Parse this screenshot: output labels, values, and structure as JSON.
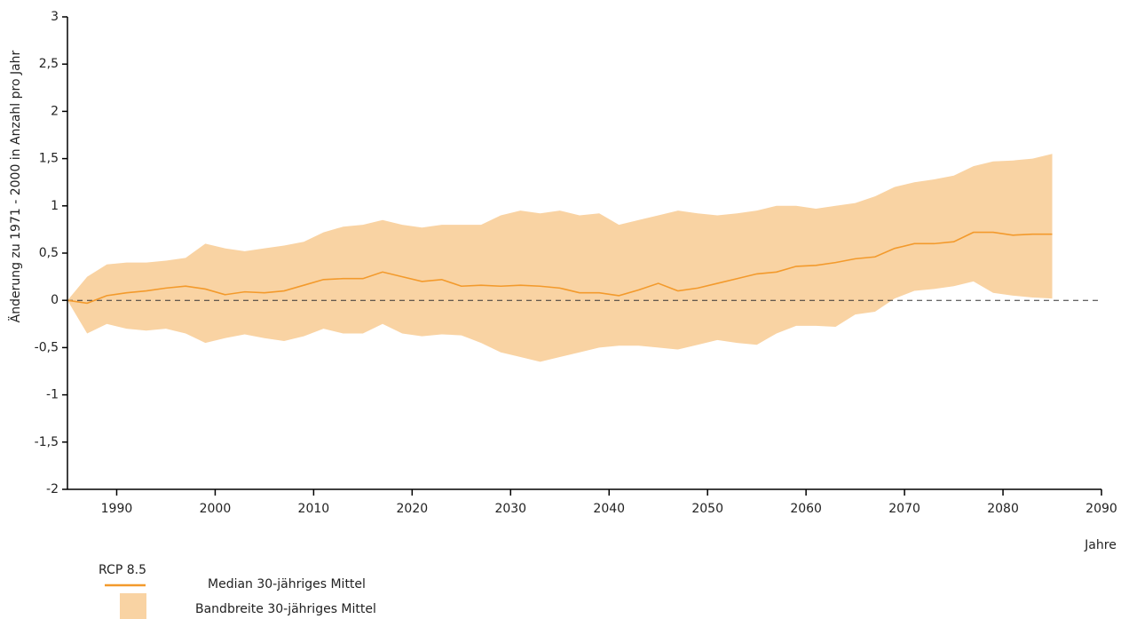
{
  "chart_data": {
    "type": "line",
    "y_label": "Änderung zu 1971 - 2000 in Anzahl pro Jahr",
    "x_label": "Jahre",
    "legend_title": "RCP 8.5",
    "xlim": [
      1985,
      2090
    ],
    "xticks": [
      1990,
      2000,
      2010,
      2020,
      2030,
      2040,
      2050,
      2060,
      2070,
      2080,
      2090
    ],
    "ylim": [
      -2,
      3
    ],
    "yticks": [
      -2,
      {
        "value": -1.5,
        "label": "-1,5"
      },
      -1,
      {
        "value": -0.5,
        "label": "-0,5"
      },
      0,
      {
        "value": 0.5,
        "label": "0,5"
      },
      1,
      {
        "value": 1.5,
        "label": "1,5"
      },
      2,
      {
        "value": 2.5,
        "label": "2,5"
      },
      3
    ],
    "reference_line": 0,
    "x": [
      1985,
      1987,
      1989,
      1991,
      1993,
      1995,
      1997,
      1999,
      2001,
      2003,
      2005,
      2007,
      2009,
      2011,
      2013,
      2015,
      2017,
      2019,
      2021,
      2023,
      2025,
      2027,
      2029,
      2031,
      2033,
      2035,
      2037,
      2039,
      2041,
      2043,
      2045,
      2047,
      2049,
      2051,
      2053,
      2055,
      2057,
      2059,
      2061,
      2063,
      2065,
      2067,
      2069,
      2071,
      2073,
      2075,
      2077,
      2079,
      2081,
      2083,
      2085
    ],
    "series": [
      {
        "name": "Median 30-jähriges Mittel",
        "color": "#f39a2c",
        "values": [
          0,
          -0.03,
          0.05,
          0.08,
          0.1,
          0.13,
          0.15,
          0.12,
          0.06,
          0.09,
          0.08,
          0.1,
          0.16,
          0.22,
          0.23,
          0.23,
          0.3,
          0.25,
          0.2,
          0.22,
          0.15,
          0.16,
          0.15,
          0.16,
          0.15,
          0.13,
          0.08,
          0.08,
          0.05,
          0.11,
          0.18,
          0.1,
          0.13,
          0.18,
          0.23,
          0.28,
          0.3,
          0.36,
          0.37,
          0.4,
          0.44,
          0.46,
          0.55,
          0.6,
          0.6,
          0.62,
          0.72,
          0.72,
          0.69,
          0.7,
          0.7
        ]
      }
    ],
    "band": {
      "name": "Bandbreite 30-jähriges Mittel",
      "color": "#f9d3a3",
      "upper": [
        0,
        0.25,
        0.38,
        0.4,
        0.4,
        0.42,
        0.45,
        0.6,
        0.55,
        0.52,
        0.55,
        0.58,
        0.62,
        0.72,
        0.78,
        0.8,
        0.85,
        0.8,
        0.77,
        0.8,
        0.8,
        0.8,
        0.9,
        0.95,
        0.92,
        0.95,
        0.9,
        0.92,
        0.8,
        0.85,
        0.9,
        0.95,
        0.92,
        0.9,
        0.92,
        0.95,
        1.0,
        1.0,
        0.97,
        1.0,
        1.03,
        1.1,
        1.2,
        1.25,
        1.28,
        1.32,
        1.42,
        1.47,
        1.48,
        1.5,
        1.55
      ],
      "lower": [
        0,
        -0.35,
        -0.25,
        -0.3,
        -0.32,
        -0.3,
        -0.35,
        -0.45,
        -0.4,
        -0.36,
        -0.4,
        -0.43,
        -0.38,
        -0.3,
        -0.35,
        -0.35,
        -0.25,
        -0.35,
        -0.38,
        -0.36,
        -0.37,
        -0.45,
        -0.55,
        -0.6,
        -0.65,
        -0.6,
        -0.55,
        -0.5,
        -0.48,
        -0.48,
        -0.5,
        -0.52,
        -0.47,
        -0.42,
        -0.45,
        -0.47,
        -0.35,
        -0.27,
        -0.27,
        -0.28,
        -0.15,
        -0.12,
        0.02,
        0.1,
        0.12,
        0.15,
        0.2,
        0.08,
        0.05,
        0.03,
        0.02
      ]
    }
  }
}
